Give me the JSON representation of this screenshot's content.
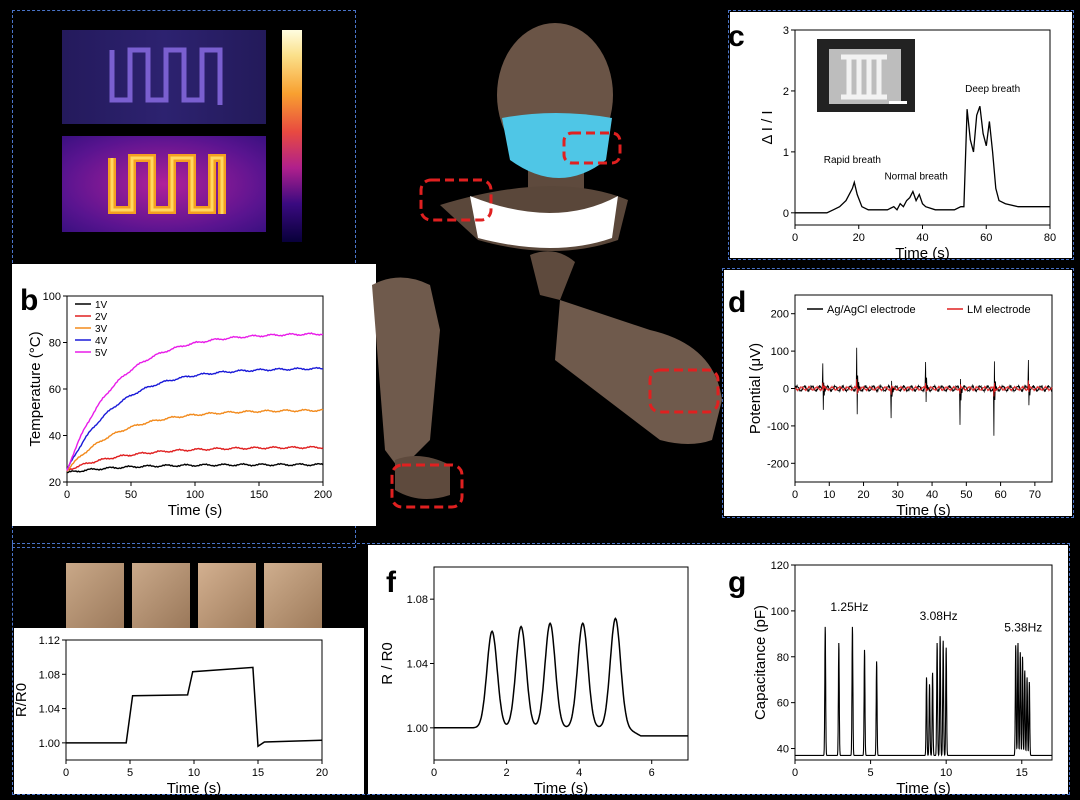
{
  "panels": {
    "b": "b",
    "c": "c",
    "d": "d",
    "f": "f",
    "g": "g"
  },
  "chart_data": [
    {
      "id": "b",
      "type": "line",
      "xlabel": "Time (s)",
      "ylabel": "Temperature (°C)",
      "xlim": [
        0,
        200
      ],
      "ylim": [
        20,
        100
      ],
      "xticks": [
        "0",
        "50",
        "100",
        "150",
        "200"
      ],
      "yticks": [
        "20",
        "40",
        "60",
        "80",
        "100"
      ],
      "legend_position": "top-left",
      "series": [
        {
          "name": "1V",
          "color": "#000000",
          "start": 24,
          "final": 27.5,
          "tau": 40
        },
        {
          "name": "2V",
          "color": "#e02020",
          "start": 25,
          "final": 35,
          "tau": 45
        },
        {
          "name": "3V",
          "color": "#f28a1c",
          "start": 25,
          "final": 51,
          "tau": 40
        },
        {
          "name": "4V",
          "color": "#1a1ad8",
          "start": 25,
          "final": 69,
          "tau": 38
        },
        {
          "name": "5V",
          "color": "#e81ce8",
          "start": 25,
          "final": 84,
          "tau": 38
        }
      ]
    },
    {
      "id": "c",
      "type": "line",
      "xlabel": "Time (s)",
      "ylabel": "Δ I / I",
      "xlim": [
        0,
        80
      ],
      "ylim": [
        -0.2,
        3
      ],
      "xticks": [
        "0",
        "20",
        "40",
        "60",
        "80"
      ],
      "yticks": [
        "0",
        "1",
        "2",
        "3"
      ],
      "annotations": [
        "Rapid breath",
        "Normal breath",
        "Deep breath"
      ],
      "series": [
        {
          "points": [
            [
              0,
              0
            ],
            [
              10,
              0
            ],
            [
              12,
              0.05
            ],
            [
              14,
              0.1
            ],
            [
              16,
              0.2
            ],
            [
              18,
              0.4
            ],
            [
              18.6,
              0.5
            ],
            [
              19.5,
              0.3
            ],
            [
              21,
              0.1
            ],
            [
              23,
              0.05
            ],
            [
              29,
              0.05
            ],
            [
              31,
              0.1
            ],
            [
              32,
              0.05
            ],
            [
              33,
              0.15
            ],
            [
              34,
              0.1
            ],
            [
              35,
              0.2
            ],
            [
              36,
              0.25
            ],
            [
              37,
              0.35
            ],
            [
              38,
              0.2
            ],
            [
              39,
              0.3
            ],
            [
              40,
              0.15
            ],
            [
              41,
              0.1
            ],
            [
              44,
              0.05
            ],
            [
              50,
              0.05
            ],
            [
              52,
              0.1
            ],
            [
              53,
              0.1
            ],
            [
              54,
              1.7
            ],
            [
              55,
              1.2
            ],
            [
              56,
              1.0
            ],
            [
              57,
              1.6
            ],
            [
              58,
              1.75
            ],
            [
              59,
              1.3
            ],
            [
              60,
              1.1
            ],
            [
              61,
              1.5
            ],
            [
              62,
              1.0
            ],
            [
              63,
              0.4
            ],
            [
              64,
              0.2
            ],
            [
              66,
              0.15
            ],
            [
              70,
              0.1
            ],
            [
              80,
              0.1
            ]
          ]
        }
      ]
    },
    {
      "id": "d",
      "type": "line",
      "xlabel": "Time (s)",
      "ylabel": "Potential (μV)",
      "xlim": [
        0,
        75
      ],
      "ylim": [
        -250,
        250
      ],
      "xticks": [
        "0",
        "10",
        "20",
        "30",
        "40",
        "50",
        "60",
        "70"
      ],
      "yticks": [
        "-200",
        "-100",
        "0",
        "100",
        "200"
      ],
      "legend_position": "top",
      "series": [
        {
          "name": "Ag/AgCl electrode",
          "color": "#000000",
          "bursts": [
            [
              8,
              135,
              -145
            ],
            [
              18,
              130,
              -140
            ],
            [
              28,
              80,
              -95
            ],
            [
              38,
              130,
              -150
            ],
            [
              48,
              110,
              -210
            ],
            [
              58,
              150,
              -190
            ],
            [
              68,
              115,
              -130
            ]
          ]
        },
        {
          "name": "LM electrode",
          "color": "#e02020",
          "bursts": [
            [
              8,
              30,
              -30
            ],
            [
              18,
              30,
              -28
            ],
            [
              28,
              22,
              -20
            ],
            [
              38,
              28,
              -26
            ],
            [
              48,
              30,
              -30
            ],
            [
              58,
              32,
              -30
            ],
            [
              68,
              30,
              -28
            ]
          ]
        }
      ]
    },
    {
      "id": "e",
      "type": "line",
      "xlabel": "Time (s)",
      "ylabel": "R/R0",
      "xlim": [
        0,
        20
      ],
      "ylim": [
        0.98,
        1.12
      ],
      "xticks": [
        "0",
        "5",
        "10",
        "15",
        "20"
      ],
      "yticks": [
        "1.00",
        "1.04",
        "1.08",
        "1.12"
      ],
      "series": [
        {
          "points": [
            [
              0,
              1.0
            ],
            [
              4.7,
              1.0
            ],
            [
              5.2,
              1.055
            ],
            [
              9.5,
              1.056
            ],
            [
              9.9,
              1.083
            ],
            [
              14.6,
              1.088
            ],
            [
              15,
              0.996
            ],
            [
              15.5,
              1.001
            ],
            [
              20,
              1.003
            ]
          ]
        }
      ]
    },
    {
      "id": "f",
      "type": "line",
      "xlabel": "Time (s)",
      "ylabel": "R / R0",
      "xlim": [
        0,
        7
      ],
      "ylim": [
        0.98,
        1.1
      ],
      "xticks": [
        "0",
        "2",
        "4",
        "6"
      ],
      "yticks": [
        "1.00",
        "1.04",
        "1.08"
      ],
      "series": [
        {
          "baseline": 1.0,
          "peaks": [
            [
              1.6,
              1.06
            ],
            [
              2.4,
              1.063
            ],
            [
              3.2,
              1.065
            ],
            [
              4.1,
              1.065
            ],
            [
              5.0,
              1.068
            ]
          ],
          "after": 0.995
        }
      ]
    },
    {
      "id": "g",
      "type": "line",
      "xlabel": "Time (s)",
      "ylabel": "Capacitance (pF)",
      "xlim": [
        0,
        17
      ],
      "ylim": [
        35,
        120
      ],
      "xticks": [
        "0",
        "5",
        "10",
        "15"
      ],
      "yticks": [
        "40",
        "60",
        "80",
        "100",
        "120"
      ],
      "annotations": [
        "1.25Hz",
        "3.08Hz",
        "5.38Hz"
      ],
      "series": [
        {
          "baseline": 37,
          "groups": [
            {
              "peaks": [
                [
                  2.0,
                  93
                ],
                [
                  2.9,
                  86
                ],
                [
                  3.8,
                  93
                ],
                [
                  4.6,
                  83
                ],
                [
                  5.4,
                  78
                ]
              ]
            },
            {
              "peaks": [
                [
                  8.7,
                  71
                ],
                [
                  8.9,
                  68
                ],
                [
                  9.1,
                  73
                ],
                [
                  9.4,
                  86
                ],
                [
                  9.6,
                  89
                ],
                [
                  9.8,
                  87
                ],
                [
                  10.0,
                  84
                ]
              ]
            },
            {
              "peaks": [
                [
                  14.6,
                  85
                ],
                [
                  14.75,
                  86
                ],
                [
                  14.9,
                  82
                ],
                [
                  15.05,
                  80
                ],
                [
                  15.2,
                  74
                ],
                [
                  15.35,
                  71
                ],
                [
                  15.5,
                  69
                ]
              ]
            }
          ]
        }
      ]
    }
  ]
}
